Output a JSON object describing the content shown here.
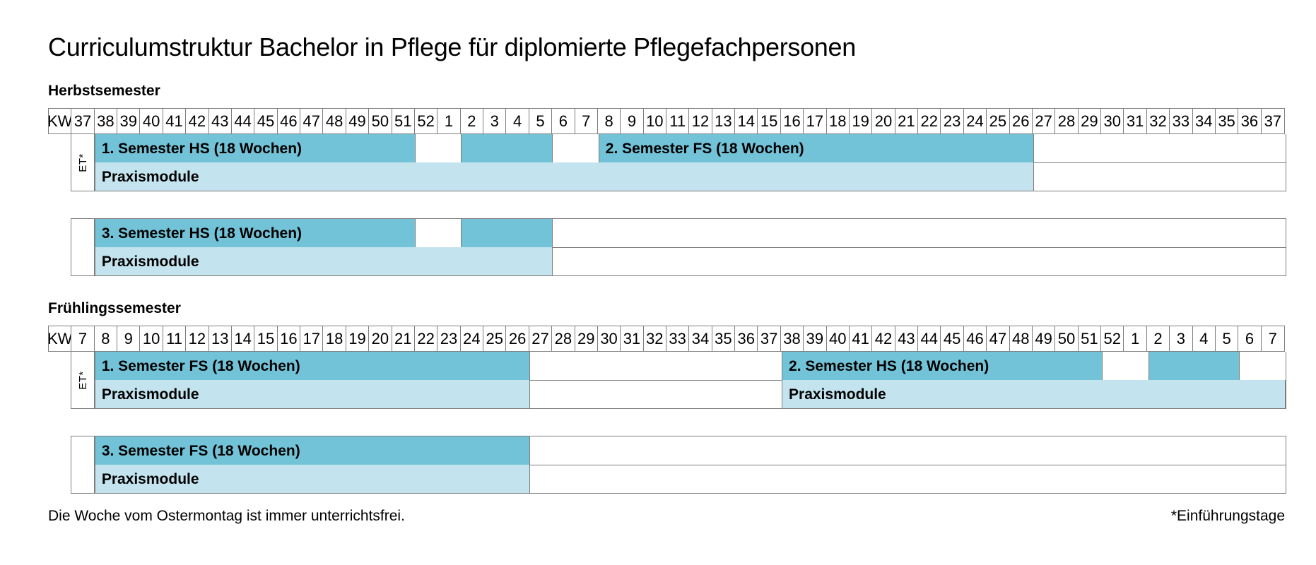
{
  "title": "Curriculumstruktur Bachelor in Pflege für diplomierte Pflegefachpersonen",
  "kw_label": "KW",
  "et_label": "ET*",
  "footnotes": {
    "left": "Die Woche vom Ostermontag ist immer unterrichtsfrei.",
    "right": "*Einführungstage"
  },
  "colors": {
    "semester_block": "#73c3d8",
    "praxis_block": "#c3e4ee",
    "grid_border": "#7d7d7d",
    "text": "#000000"
  },
  "sections": [
    {
      "id": "herbstsemester",
      "heading": "Herbstsemester",
      "weeks": [
        37,
        38,
        39,
        40,
        41,
        42,
        43,
        44,
        45,
        46,
        47,
        48,
        49,
        50,
        51,
        52,
        1,
        2,
        3,
        4,
        5,
        6,
        7,
        8,
        9,
        10,
        11,
        12,
        13,
        14,
        15,
        16,
        17,
        18,
        19,
        20,
        21,
        22,
        23,
        24,
        25,
        26,
        27,
        28,
        29,
        30,
        31,
        32,
        33,
        34,
        35,
        36,
        37
      ],
      "groups": [
        {
          "left_cell": "ET*",
          "attached": true,
          "semester_blocks": [
            {
              "label": "1. Semester HS (18 Wochen)",
              "start": 1,
              "span": 14
            },
            {
              "label": "",
              "start": 17,
              "span": 4
            },
            {
              "label": "2. Semester FS (18 Wochen)",
              "start": 23,
              "span": 19
            }
          ],
          "praxis_blocks": [
            {
              "label": "Praxismodule",
              "start": 1,
              "span": 41
            }
          ]
        },
        {
          "left_cell": "",
          "attached": false,
          "semester_blocks": [
            {
              "label": "3. Semester HS (18 Wochen)",
              "start": 1,
              "span": 14
            },
            {
              "label": "",
              "start": 17,
              "span": 4
            }
          ],
          "praxis_blocks": [
            {
              "label": "Praxismodule",
              "start": 1,
              "span": 20
            }
          ]
        }
      ]
    },
    {
      "id": "fruehlingssemester",
      "heading": "Frühlingssemester",
      "weeks": [
        7,
        8,
        9,
        10,
        11,
        12,
        13,
        14,
        15,
        16,
        17,
        18,
        19,
        20,
        21,
        22,
        23,
        24,
        25,
        26,
        27,
        28,
        29,
        30,
        31,
        32,
        33,
        34,
        35,
        36,
        37,
        38,
        39,
        40,
        41,
        42,
        43,
        44,
        45,
        46,
        47,
        48,
        49,
        50,
        51,
        52,
        1,
        2,
        3,
        4,
        5,
        6,
        7
      ],
      "groups": [
        {
          "left_cell": "ET*",
          "attached": true,
          "semester_blocks": [
            {
              "label": "1. Semester FS (18 Wochen)",
              "start": 1,
              "span": 19
            },
            {
              "label": "2. Semester HS (18 Wochen)",
              "start": 31,
              "span": 14
            },
            {
              "label": "",
              "start": 47,
              "span": 4
            }
          ],
          "praxis_blocks": [
            {
              "label": "Praxismodule",
              "start": 1,
              "span": 19
            },
            {
              "label": "Praxismodule",
              "start": 31,
              "span": 22
            }
          ]
        },
        {
          "left_cell": "",
          "attached": false,
          "semester_blocks": [
            {
              "label": "3. Semester FS (18 Wochen)",
              "start": 1,
              "span": 19
            }
          ],
          "praxis_blocks": [
            {
              "label": "Praxismodule",
              "start": 1,
              "span": 19
            }
          ]
        }
      ]
    }
  ]
}
